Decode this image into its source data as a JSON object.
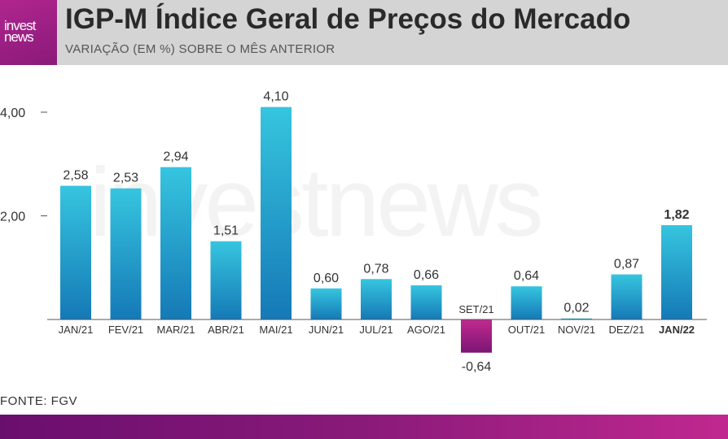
{
  "header": {
    "logo_line1": "invest",
    "logo_line2": "news",
    "title": "IGP-M   Índice Geral de Preços do Mercado",
    "subtitle": "VARIAÇÃO (EM %) SOBRE O MÊS ANTERIOR"
  },
  "watermark": "investnews",
  "source": "FONTE: FGV",
  "colors": {
    "bar_top": "#36c5df",
    "bar_bottom": "#1579b6",
    "neg_top": "#c2298f",
    "neg_bottom": "#7b1675",
    "brand": "#b0258e"
  },
  "chart_data": {
    "type": "bar",
    "categories": [
      "JAN/21",
      "FEV/21",
      "MAR/21",
      "ABR/21",
      "MAI/21",
      "JUN/21",
      "JUL/21",
      "AGO/21",
      "SET/21",
      "OUT/21",
      "NOV/21",
      "DEZ/21",
      "JAN/22"
    ],
    "values": [
      2.58,
      2.53,
      2.94,
      1.51,
      4.1,
      0.6,
      0.78,
      0.66,
      -0.64,
      0.64,
      0.02,
      0.87,
      1.82
    ],
    "value_labels": [
      "2,58",
      "2,53",
      "2,94",
      "1,51",
      "4,10",
      "0,60",
      "0,78",
      "0,66",
      "-0,64",
      "0,64",
      "0,02",
      "0,87",
      "1,82"
    ],
    "highlight": "JAN/22",
    "y_ticks": [
      2.0,
      4.0
    ],
    "y_tick_labels": [
      "2,00",
      "4,00"
    ],
    "ylim": [
      -0.7,
      4.35
    ],
    "title": "IGP-M   Índice Geral de Preços do Mercado",
    "subtitle": "VARIAÇÃO (EM %) SOBRE O MÊS ANTERIOR",
    "xlabel": "",
    "ylabel": "",
    "grid": false
  }
}
